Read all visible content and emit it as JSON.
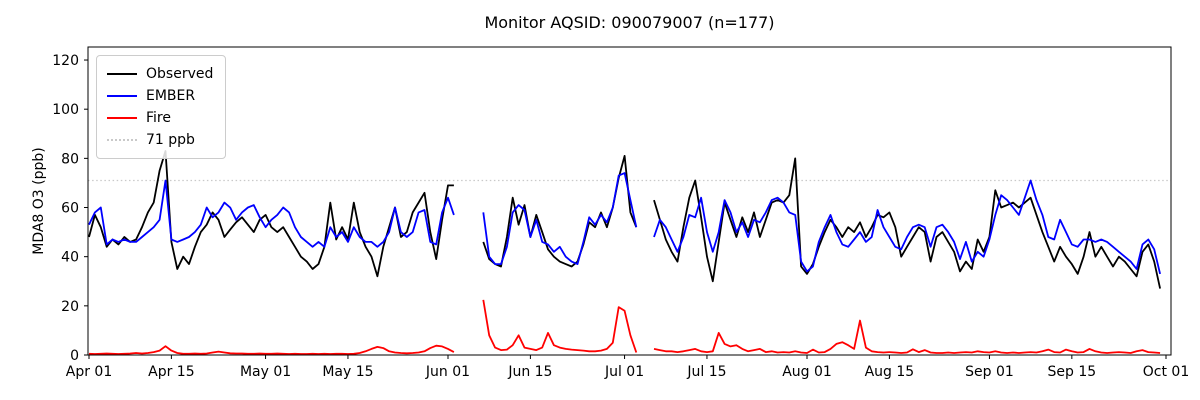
{
  "title": "Monitor AQSID: 090079007 (n=177)",
  "ylabel": "MDA8 O3 (ppb)",
  "legend": {
    "entries": [
      {
        "label": "Observed",
        "color": "#000000",
        "style": "solid"
      },
      {
        "label": "EMBER",
        "color": "#0000ff",
        "style": "solid"
      },
      {
        "label": "Fire",
        "color": "#ff0000",
        "style": "solid"
      },
      {
        "label": "71 ppb",
        "color": "#c9c9c9",
        "style": "dotted"
      }
    ],
    "position": "upper left"
  },
  "colors": {
    "observed": "#000000",
    "ember": "#0000ff",
    "fire": "#ff0000",
    "threshold": "#c9c9c9",
    "axis": "#000000",
    "background": "#ffffff"
  },
  "chart_data": {
    "type": "line",
    "title": "Monitor AQSID: 090079007 (n=177)",
    "xlabel": "",
    "ylabel": "MDA8 O3 (ppb)",
    "grid": false,
    "legend_position": "upper left",
    "x_start_date": "Apr 01",
    "x_end_date": "Oct 01",
    "n_days": 183,
    "n_points": 177,
    "ylim": [
      0,
      125.3
    ],
    "y_ticks": [
      0,
      20,
      40,
      60,
      80,
      100,
      120
    ],
    "x_ticks": [
      {
        "day": 0,
        "label": "Apr 01"
      },
      {
        "day": 14,
        "label": "Apr 15"
      },
      {
        "day": 30,
        "label": "May 01"
      },
      {
        "day": 44,
        "label": "May 15"
      },
      {
        "day": 61,
        "label": "Jun 01"
      },
      {
        "day": 75,
        "label": "Jun 15"
      },
      {
        "day": 91,
        "label": "Jul 01"
      },
      {
        "day": 105,
        "label": "Jul 15"
      },
      {
        "day": 122,
        "label": "Aug 01"
      },
      {
        "day": 136,
        "label": "Aug 15"
      },
      {
        "day": 153,
        "label": "Sep 01"
      },
      {
        "day": 167,
        "label": "Sep 15"
      },
      {
        "day": 183,
        "label": "Oct 01"
      }
    ],
    "threshold": {
      "value": 71,
      "label": "71 ppb",
      "color": "#c9c9c9",
      "style": "dotted"
    },
    "gaps": [
      "Jun 03-Jun 06",
      "Jul 04-Jul 05"
    ],
    "series": [
      {
        "name": "Observed",
        "color": "#000000",
        "values": [
          48,
          57,
          52,
          44,
          47,
          45,
          48,
          46,
          47,
          52,
          58,
          62,
          75,
          83,
          46,
          35,
          40,
          37,
          44,
          50,
          53,
          58,
          55,
          48,
          51,
          54,
          56,
          53,
          50,
          55,
          57,
          52,
          50,
          52,
          48,
          44,
          40,
          38,
          35,
          37,
          44,
          62,
          47,
          52,
          47,
          62,
          50,
          44,
          40,
          32,
          44,
          52,
          60,
          48,
          50,
          58,
          62,
          66,
          50,
          39,
          55,
          69,
          69,
          null,
          null,
          null,
          null,
          46,
          39,
          37,
          36,
          48,
          64,
          53,
          61,
          48,
          57,
          50,
          43,
          40,
          38,
          37,
          36,
          38,
          45,
          54,
          52,
          58,
          52,
          60,
          72,
          81,
          58,
          52,
          null,
          null,
          63,
          55,
          47,
          42,
          38,
          52,
          64,
          71,
          56,
          40,
          30,
          46,
          62,
          55,
          48,
          56,
          50,
          58,
          48,
          55,
          62,
          63,
          62,
          65,
          80,
          36,
          33,
          37,
          44,
          50,
          55,
          52,
          48,
          52,
          50,
          54,
          48,
          52,
          57,
          56,
          58,
          52,
          40,
          44,
          48,
          52,
          50,
          38,
          48,
          50,
          46,
          42,
          34,
          38,
          35,
          47,
          42,
          48,
          67,
          60,
          61,
          62,
          60,
          62,
          64,
          57,
          50,
          44,
          38,
          44,
          40,
          37,
          33,
          40,
          50,
          40,
          44,
          40,
          36,
          40,
          38,
          35,
          32,
          42,
          45,
          38,
          27
        ]
      },
      {
        "name": "EMBER",
        "color": "#0000ff",
        "values": [
          53,
          58,
          60,
          45,
          47,
          46,
          47,
          46,
          46,
          48,
          50,
          52,
          55,
          71,
          47,
          46,
          47,
          48,
          50,
          53,
          60,
          56,
          58,
          62,
          60,
          55,
          58,
          60,
          61,
          56,
          52,
          55,
          57,
          60,
          58,
          52,
          48,
          46,
          44,
          46,
          44,
          52,
          48,
          50,
          46,
          52,
          48,
          46,
          46,
          44,
          46,
          50,
          60,
          50,
          48,
          50,
          58,
          59,
          46,
          45,
          58,
          64,
          57,
          null,
          null,
          null,
          null,
          58,
          40,
          37,
          37,
          44,
          58,
          61,
          59,
          48,
          55,
          46,
          45,
          42,
          44,
          40,
          38,
          37,
          46,
          56,
          53,
          57,
          54,
          60,
          73,
          74,
          63,
          52,
          null,
          null,
          48,
          55,
          52,
          47,
          42,
          48,
          57,
          56,
          64,
          50,
          42,
          50,
          63,
          58,
          50,
          54,
          48,
          55,
          54,
          58,
          63,
          64,
          62,
          58,
          57,
          38,
          34,
          36,
          46,
          52,
          57,
          50,
          45,
          44,
          47,
          50,
          46,
          48,
          59,
          52,
          48,
          44,
          43,
          48,
          52,
          53,
          52,
          44,
          52,
          53,
          50,
          46,
          39,
          46,
          38,
          42,
          40,
          47,
          57,
          65,
          63,
          60,
          57,
          64,
          71,
          63,
          57,
          48,
          47,
          55,
          50,
          45,
          44,
          47,
          47,
          46,
          47,
          46,
          44,
          42,
          40,
          38,
          35,
          45,
          47,
          43,
          33
        ]
      },
      {
        "name": "Fire",
        "color": "#ff0000",
        "values": [
          0.5,
          0.4,
          0.5,
          0.6,
          0.5,
          0.4,
          0.5,
          0.6,
          0.8,
          0.6,
          0.8,
          1.2,
          1.8,
          3.6,
          1.8,
          0.8,
          0.5,
          0.5,
          0.6,
          0.5,
          0.6,
          1.0,
          1.4,
          1.0,
          0.7,
          0.6,
          0.6,
          0.5,
          0.5,
          0.6,
          0.5,
          0.5,
          0.6,
          0.5,
          0.4,
          0.5,
          0.4,
          0.4,
          0.5,
          0.4,
          0.5,
          0.4,
          0.5,
          0.5,
          0.4,
          0.5,
          0.8,
          1.5,
          2.5,
          3.3,
          2.8,
          1.5,
          1.0,
          0.8,
          0.7,
          0.8,
          1.0,
          1.5,
          2.8,
          3.8,
          3.5,
          2.5,
          1.2,
          null,
          null,
          null,
          null,
          22.4,
          8,
          3,
          2,
          2.2,
          4,
          8,
          3,
          2.5,
          2,
          3,
          9,
          4,
          3,
          2.5,
          2.2,
          2,
          1.8,
          1.5,
          1.5,
          1.8,
          2.5,
          5,
          19.5,
          18,
          8,
          1,
          null,
          null,
          2.5,
          2,
          1.5,
          1.5,
          1.2,
          1.5,
          2,
          2.5,
          1.5,
          1.2,
          1.5,
          9,
          4.5,
          3.5,
          4,
          2.5,
          1.5,
          2,
          2.5,
          1.2,
          1.5,
          1,
          1.2,
          1,
          1.5,
          1,
          0.8,
          2.2,
          1,
          1.2,
          2.5,
          4.5,
          5.2,
          4,
          2.5,
          14,
          3,
          1.5,
          1.2,
          1,
          1.2,
          1,
          0.8,
          1,
          2.3,
          1.2,
          2,
          1,
          0.8,
          0.8,
          1,
          0.8,
          1,
          1.2,
          1,
          1.5,
          1.2,
          1,
          1.5,
          1,
          0.8,
          1,
          0.8,
          1,
          1.2,
          1,
          1.5,
          2.2,
          1.2,
          1,
          2.2,
          1.5,
          1,
          1.2,
          2.5,
          1.5,
          1,
          0.8,
          1,
          1.2,
          1,
          0.8,
          1.5,
          2,
          1.2,
          1,
          0.8
        ]
      }
    ]
  }
}
